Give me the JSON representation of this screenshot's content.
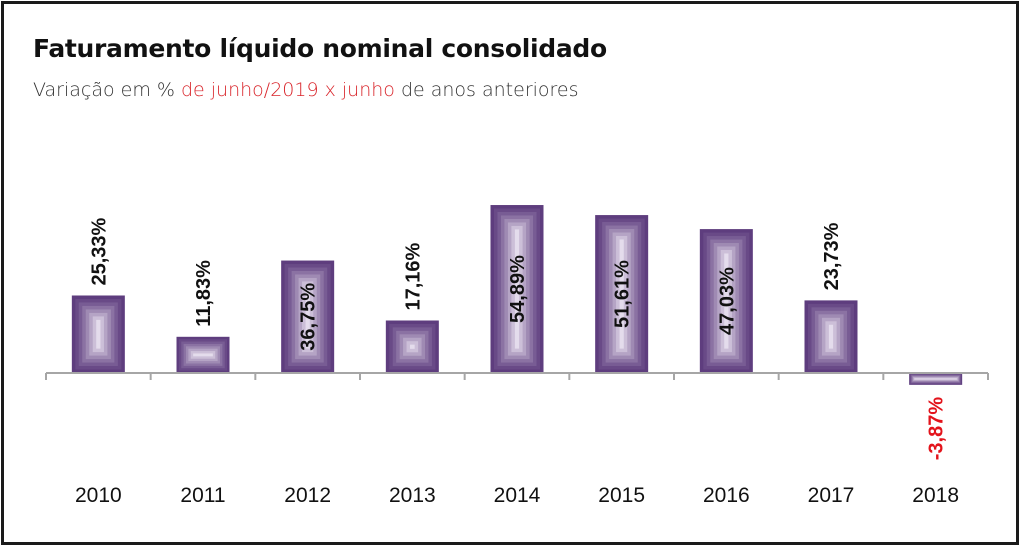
{
  "chart_data": {
    "type": "bar",
    "title": "Faturamento líquido nominal consolidado",
    "subtitle": {
      "part1": "Variação em % ",
      "highlight": "de junho/2019 x junho",
      "part2": " de anos anteriores"
    },
    "categories": [
      "2010",
      "2011",
      "2012",
      "2013",
      "2014",
      "2015",
      "2016",
      "2017",
      "2018"
    ],
    "values": [
      25.33,
      11.83,
      36.75,
      17.16,
      54.89,
      51.61,
      47.03,
      23.73,
      -3.87
    ],
    "data_labels": [
      "25,33%",
      "11,83%",
      "36,75%",
      "17,16%",
      "54,89%",
      "51,61%",
      "47,03%",
      "23,73%",
      "-3,87%"
    ],
    "label_inside": [
      false,
      false,
      true,
      false,
      true,
      true,
      true,
      false,
      false
    ],
    "xlabel": "",
    "ylabel": "",
    "ylim": [
      -3.87,
      54.89
    ],
    "grid": false,
    "legend": "none",
    "colors": {
      "bar_dark": "#5e3d7e",
      "bar_light": "#e4dcec",
      "axis": "#a6a6a6",
      "positive_label": "#111111",
      "negative_label": "#e3131b",
      "highlight_text": "#d9262c"
    }
  }
}
